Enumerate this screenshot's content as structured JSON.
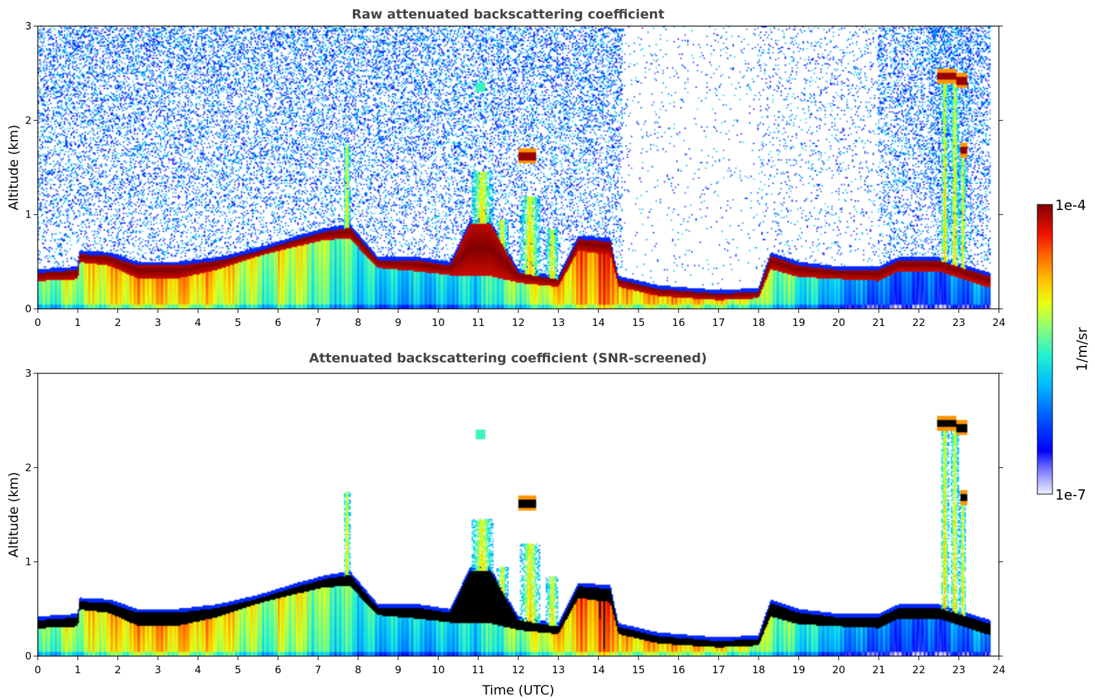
{
  "chart_data": [
    {
      "type": "heatmap",
      "title": "Raw attenuated backscattering coefficient",
      "xlabel": "",
      "ylabel": "Altitude (km)",
      "xlim": [
        0,
        24
      ],
      "ylim": [
        0,
        3
      ],
      "xticks": [
        0,
        1,
        2,
        3,
        4,
        5,
        6,
        7,
        8,
        9,
        10,
        11,
        12,
        13,
        14,
        15,
        16,
        17,
        18,
        19,
        20,
        21,
        22,
        23,
        24
      ],
      "yticks": [
        0,
        1,
        2,
        3
      ],
      "data_end_hour": 23.8,
      "noise": "strong",
      "layer_top_km": [
        [
          0,
          0.42
        ],
        [
          1,
          0.45
        ],
        [
          1.05,
          0.62
        ],
        [
          1.8,
          0.6
        ],
        [
          2.5,
          0.5
        ],
        [
          3.5,
          0.5
        ],
        [
          4.5,
          0.55
        ],
        [
          5.5,
          0.65
        ],
        [
          6.5,
          0.78
        ],
        [
          7.2,
          0.86
        ],
        [
          7.8,
          0.9
        ],
        [
          8.5,
          0.55
        ],
        [
          9.5,
          0.55
        ],
        [
          10.3,
          0.5
        ],
        [
          10.8,
          0.95
        ],
        [
          11.3,
          0.95
        ],
        [
          12,
          0.42
        ],
        [
          13,
          0.35
        ],
        [
          13.5,
          0.78
        ],
        [
          14.3,
          0.75
        ],
        [
          14.5,
          0.35
        ],
        [
          15.5,
          0.25
        ],
        [
          17,
          0.2
        ],
        [
          18,
          0.22
        ],
        [
          18.3,
          0.6
        ],
        [
          19,
          0.5
        ],
        [
          20,
          0.45
        ],
        [
          21,
          0.45
        ],
        [
          21.5,
          0.55
        ],
        [
          22.5,
          0.55
        ],
        [
          23.8,
          0.38
        ]
      ],
      "cloud_base_km": [
        [
          0,
          0.28
        ],
        [
          1,
          0.3
        ],
        [
          1.05,
          0.48
        ],
        [
          1.8,
          0.44
        ],
        [
          2.5,
          0.3
        ],
        [
          3.5,
          0.3
        ],
        [
          4.5,
          0.4
        ],
        [
          5.5,
          0.55
        ],
        [
          6.5,
          0.65
        ],
        [
          7.2,
          0.72
        ],
        [
          7.8,
          0.72
        ],
        [
          8.5,
          0.42
        ],
        [
          9.5,
          0.38
        ],
        [
          10.3,
          0.34
        ],
        [
          10.8,
          0.28
        ],
        [
          11.3,
          0.28
        ],
        [
          12,
          0.26
        ],
        [
          13,
          0.22
        ],
        [
          13.5,
          0.6
        ],
        [
          14.3,
          0.55
        ],
        [
          14.5,
          0.22
        ],
        [
          15.5,
          0.12
        ],
        [
          17,
          0.08
        ],
        [
          18,
          0.1
        ],
        [
          18.3,
          0.4
        ],
        [
          19,
          0.32
        ],
        [
          20,
          0.3
        ],
        [
          21,
          0.28
        ],
        [
          21.5,
          0.38
        ],
        [
          22.5,
          0.38
        ],
        [
          23.8,
          0.2
        ]
      ],
      "plumes": [
        {
          "x": 7.72,
          "halfwidth_hours": 0.09,
          "top_km": 1.75
        },
        {
          "x": 11.1,
          "halfwidth_hours": 0.28,
          "top_km": 1.45
        },
        {
          "x": 11.6,
          "halfwidth_hours": 0.15,
          "top_km": 0.95
        },
        {
          "x": 12.3,
          "halfwidth_hours": 0.25,
          "top_km": 1.2
        },
        {
          "x": 12.85,
          "halfwidth_hours": 0.15,
          "top_km": 0.85
        },
        {
          "x": 22.65,
          "halfwidth_hours": 0.1,
          "top_km": 2.45
        },
        {
          "x": 22.9,
          "halfwidth_hours": 0.1,
          "top_km": 2.45
        },
        {
          "x": 23.1,
          "halfwidth_hours": 0.08,
          "top_km": 1.75
        }
      ],
      "high_clouds": [
        {
          "x0": 12.0,
          "x1": 12.45,
          "y": 1.62
        },
        {
          "x0": 22.45,
          "x1": 22.95,
          "y": 2.47
        },
        {
          "x0": 22.95,
          "x1": 23.2,
          "y": 2.42
        },
        {
          "x0": 23.05,
          "x1": 23.2,
          "y": 1.68
        }
      ],
      "aerosol_patches": [
        {
          "x": 11.05,
          "y": 2.35,
          "size_hours": 0.12
        }
      ]
    },
    {
      "type": "heatmap",
      "title": "Attenuated backscattering coefficient (SNR-screened)",
      "xlabel": "Time (UTC)",
      "ylabel": "Altitude (km)",
      "xlim": [
        0,
        24
      ],
      "ylim": [
        0,
        3
      ],
      "xticks": [
        0,
        1,
        2,
        3,
        4,
        5,
        6,
        7,
        8,
        9,
        10,
        11,
        12,
        13,
        14,
        15,
        16,
        17,
        18,
        19,
        20,
        21,
        22,
        23,
        24
      ],
      "yticks": [
        0,
        1,
        2,
        3
      ],
      "data_end_hour": 23.8,
      "noise": "screened",
      "saturated_color": "#000000"
    }
  ],
  "colorbar": {
    "label": "1/m/sr",
    "max_label": "1e-4",
    "min_label": "1e-7",
    "scale": "log",
    "colormap": "jet"
  }
}
